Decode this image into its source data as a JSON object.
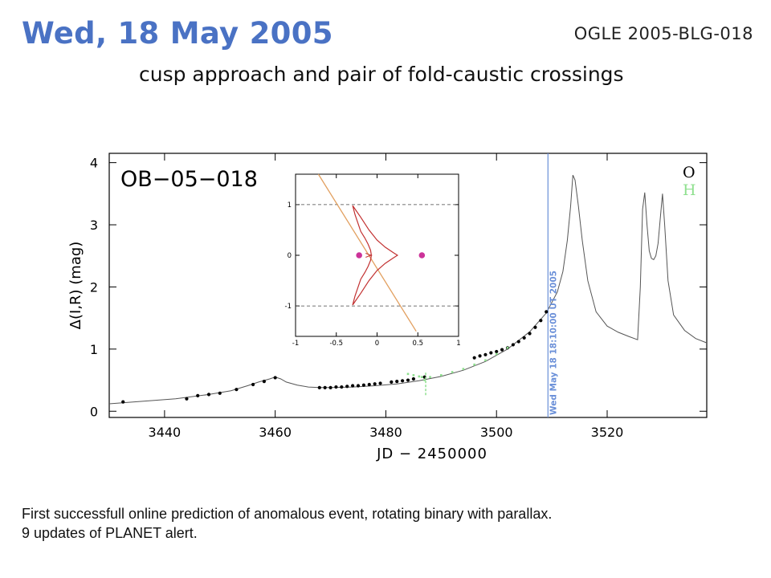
{
  "header": {
    "title": "Wed, 18 May 2005",
    "event_id": "OGLE 2005-BLG-018",
    "subtitle": "cusp approach and pair of fold-caustic crossings"
  },
  "caption": {
    "line1": "First successfull online prediction of anomalous event, rotating binary with parallax.",
    "line2": "9 updates of PLANET alert."
  },
  "chart_data": [
    {
      "type": "line",
      "title": "OB−05−018",
      "xlabel": "JD − 2450000",
      "ylabel": "Δ(I,R) (mag)",
      "xlim": [
        3430,
        3538
      ],
      "ylim": [
        -0.1,
        4.15
      ],
      "x_ticks": [
        3440,
        3460,
        3480,
        3500,
        3520
      ],
      "y_ticks": [
        0,
        1,
        2,
        3,
        4
      ],
      "legend": [
        {
          "label": "O",
          "color": "#000000"
        },
        {
          "label": "H",
          "color": "#8fe08f"
        }
      ],
      "annotation": {
        "text": "Wed May 18 18:10:00 UT 2005",
        "x": 3509.3,
        "color": "#6a8fd8"
      },
      "model": {
        "x": [
          3430,
          3436,
          3442,
          3448,
          3452,
          3455,
          3457,
          3459,
          3460,
          3461,
          3462,
          3464,
          3466,
          3468,
          3470,
          3474,
          3478,
          3482,
          3486,
          3490,
          3494,
          3498,
          3502,
          3506,
          3509,
          3511,
          3512,
          3512.8,
          3513.4,
          3513.8,
          3514.2,
          3514.8,
          3515.5,
          3516.5,
          3518,
          3520,
          3522,
          3524,
          3525.5,
          3526,
          3526.4,
          3526.8,
          3527.2,
          3527.6,
          3528,
          3528.4,
          3528.8,
          3529.2,
          3529.6,
          3530,
          3530.4,
          3531,
          3532,
          3534,
          3536,
          3538
        ],
        "y": [
          0.12,
          0.16,
          0.2,
          0.27,
          0.33,
          0.41,
          0.47,
          0.52,
          0.55,
          0.52,
          0.47,
          0.42,
          0.39,
          0.38,
          0.38,
          0.39,
          0.41,
          0.44,
          0.49,
          0.56,
          0.66,
          0.8,
          1.0,
          1.28,
          1.58,
          1.92,
          2.25,
          2.75,
          3.3,
          3.8,
          3.72,
          3.3,
          2.75,
          2.1,
          1.6,
          1.37,
          1.27,
          1.2,
          1.15,
          2.0,
          3.25,
          3.52,
          3.0,
          2.58,
          2.46,
          2.44,
          2.5,
          2.7,
          3.1,
          3.5,
          3.0,
          2.1,
          1.55,
          1.3,
          1.17,
          1.1
        ]
      },
      "series": [
        {
          "name": "O",
          "color": "#000000",
          "x": [
            3432.5,
            3444,
            3446,
            3448,
            3450,
            3453,
            3456,
            3458,
            3460,
            3468,
            3469,
            3470,
            3471,
            3472,
            3473,
            3474,
            3475,
            3476,
            3477,
            3478,
            3479,
            3481,
            3482,
            3483,
            3484,
            3485,
            3487,
            3496,
            3497,
            3498,
            3499,
            3500,
            3501,
            3502,
            3503,
            3504,
            3505,
            3506,
            3507,
            3508,
            3509
          ],
          "y": [
            0.15,
            0.2,
            0.25,
            0.27,
            0.29,
            0.35,
            0.43,
            0.48,
            0.54,
            0.38,
            0.38,
            0.38,
            0.39,
            0.39,
            0.4,
            0.41,
            0.41,
            0.42,
            0.43,
            0.44,
            0.45,
            0.47,
            0.48,
            0.49,
            0.5,
            0.52,
            0.55,
            0.86,
            0.89,
            0.91,
            0.94,
            0.96,
            0.99,
            1.02,
            1.07,
            1.12,
            1.18,
            1.25,
            1.35,
            1.46,
            1.6
          ]
        },
        {
          "name": "H",
          "color": "#8fe08f",
          "x": [
            3484,
            3485,
            3486,
            3486.5,
            3487,
            3488,
            3490,
            3492,
            3494,
            3496,
            3498,
            3500,
            3502
          ],
          "y": [
            0.6,
            0.58,
            0.56,
            0.55,
            0.5,
            0.55,
            0.58,
            0.63,
            0.68,
            0.75,
            0.82,
            0.92,
            1.02
          ]
        }
      ]
    },
    {
      "type": "line",
      "title": "",
      "xlim": [
        -1,
        1
      ],
      "ylim": [
        -1.6,
        1.6
      ],
      "x_ticks": [
        -1,
        -0.5,
        0,
        0.5,
        1
      ],
      "y_ticks": [
        -1,
        0,
        1
      ],
      "dashed_y": [
        -1,
        1
      ],
      "caustic": {
        "color": "#c23030",
        "x": [
          -0.07,
          -0.08,
          -0.11,
          -0.15,
          -0.2,
          -0.27,
          -0.3,
          -0.2,
          -0.1,
          0,
          0.1,
          0.2,
          0.25,
          0.2,
          0.1,
          0,
          -0.1,
          -0.2,
          -0.3,
          -0.27,
          -0.2,
          -0.15,
          -0.11,
          -0.08,
          -0.07
        ],
        "y": [
          0,
          0.1,
          0.22,
          0.34,
          0.47,
          0.8,
          0.98,
          0.75,
          0.5,
          0.3,
          0.16,
          0.05,
          0,
          -0.05,
          -0.16,
          -0.3,
          -0.5,
          -0.75,
          -0.98,
          -0.8,
          -0.47,
          -0.34,
          -0.22,
          -0.1,
          0
        ]
      },
      "inner_cusp": {
        "color": "#c23030",
        "x": [
          -0.14,
          -0.11,
          -0.07,
          -0.11,
          -0.14
        ],
        "y": [
          0.04,
          0.02,
          0,
          -0.02,
          -0.04
        ]
      },
      "trajectory": {
        "color": "#e2a060",
        "x": [
          -0.72,
          0.48
        ],
        "y": [
          1.6,
          -1.5
        ]
      },
      "lenses": {
        "color": "#cc3399",
        "x": [
          -0.22,
          0.55
        ],
        "y": [
          0,
          0
        ]
      }
    }
  ]
}
